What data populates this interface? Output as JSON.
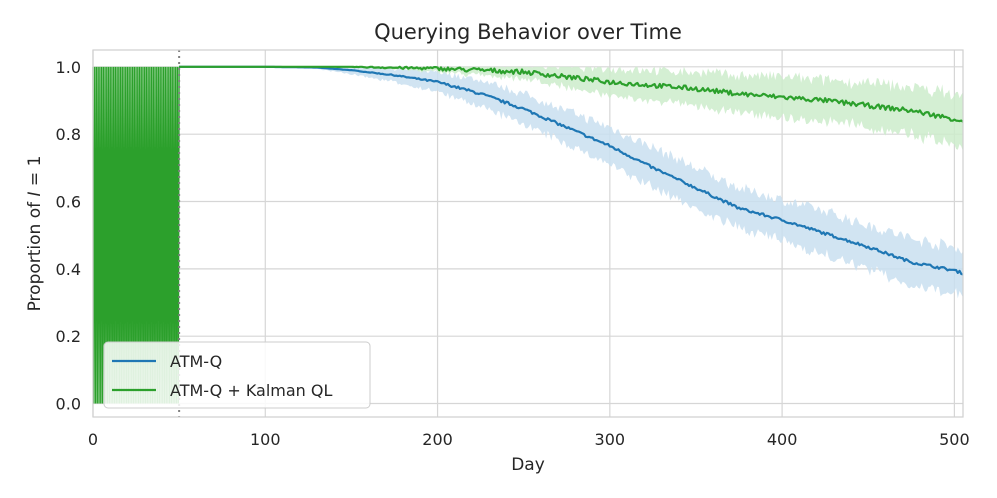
{
  "chart_data": {
    "type": "line",
    "title": "Querying Behavior over Time",
    "xlabel": "Day",
    "ylabel": "Proportion of I = 1",
    "xlim": [
      0,
      505
    ],
    "ylim": [
      -0.04,
      1.05
    ],
    "xticks": [
      0,
      100,
      200,
      300,
      400,
      500
    ],
    "xtick_labels": [
      "0",
      "100",
      "200",
      "300",
      "400",
      "500"
    ],
    "yticks": [
      0.0,
      0.2,
      0.4,
      0.6,
      0.8,
      1.0
    ],
    "ytick_labels": [
      "0.0",
      "0.2",
      "0.4",
      "0.6",
      "0.8",
      "1.0"
    ],
    "grid": true,
    "legend_position": "lower-left",
    "vline": {
      "x": 50,
      "style": "dotted"
    },
    "initial_phase": {
      "x_end": 50,
      "description": "alternating exploration 0/1"
    },
    "series": [
      {
        "name": "ATM-Q",
        "color": "#1f77b4",
        "band_color": "#c9dff0",
        "x": [
          50,
          100,
          130,
          150,
          175,
          200,
          225,
          250,
          275,
          300,
          325,
          350,
          375,
          400,
          425,
          450,
          475,
          500,
          505
        ],
        "y": [
          1.0,
          1.0,
          0.998,
          0.99,
          0.975,
          0.955,
          0.92,
          0.875,
          0.82,
          0.765,
          0.7,
          0.64,
          0.58,
          0.545,
          0.505,
          0.465,
          0.42,
          0.395,
          0.387
        ],
        "band_halfwidth": [
          0.0,
          0.0,
          0.004,
          0.012,
          0.02,
          0.03,
          0.04,
          0.045,
          0.05,
          0.055,
          0.06,
          0.06,
          0.06,
          0.06,
          0.065,
          0.065,
          0.07,
          0.07,
          0.07
        ]
      },
      {
        "name": "ATM-Q + Kalman QL",
        "color": "#2ca02c",
        "band_color": "#cdeccb",
        "x": [
          50,
          150,
          200,
          225,
          250,
          275,
          300,
          325,
          350,
          375,
          400,
          425,
          450,
          475,
          500,
          505
        ],
        "y": [
          1.0,
          1.0,
          0.995,
          0.99,
          0.985,
          0.97,
          0.955,
          0.945,
          0.935,
          0.92,
          0.91,
          0.9,
          0.885,
          0.87,
          0.845,
          0.84
        ],
        "band_halfwidth": [
          0.0,
          0.0,
          0.01,
          0.015,
          0.02,
          0.03,
          0.04,
          0.045,
          0.05,
          0.055,
          0.06,
          0.06,
          0.065,
          0.07,
          0.075,
          0.075
        ]
      }
    ]
  }
}
